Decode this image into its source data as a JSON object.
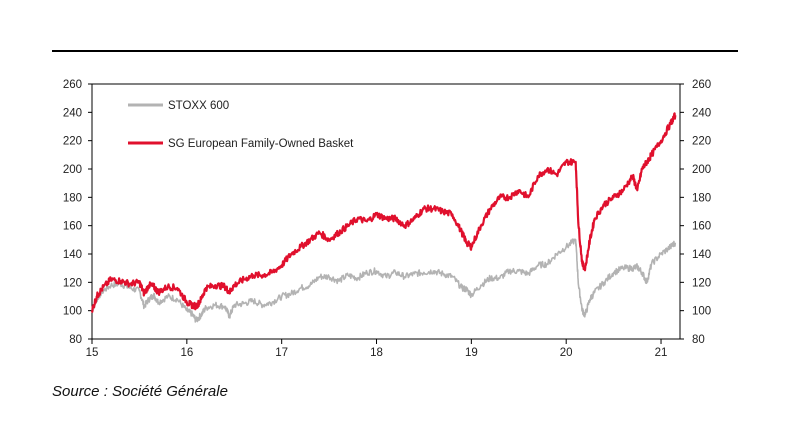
{
  "source": "Source : Société Générale",
  "chart_data": {
    "type": "line",
    "title": "",
    "xlabel": "",
    "ylabel": "",
    "x_ticks": [
      "15",
      "16",
      "17",
      "18",
      "19",
      "20",
      "21"
    ],
    "xlim": [
      15,
      21.2
    ],
    "ylim": [
      80,
      260
    ],
    "y_ticks": [
      80,
      100,
      120,
      140,
      160,
      180,
      200,
      220,
      240,
      260
    ],
    "secondary_y_axis": true,
    "grid": false,
    "legend_position": "top-left",
    "series": [
      {
        "name": "STOXX 600",
        "color": "#b3b3b3",
        "x": [
          15.0,
          15.05,
          15.1,
          15.2,
          15.3,
          15.4,
          15.5,
          15.55,
          15.6,
          15.65,
          15.7,
          15.8,
          15.9,
          16.0,
          16.05,
          16.1,
          16.15,
          16.2,
          16.3,
          16.4,
          16.45,
          16.5,
          16.6,
          16.7,
          16.8,
          16.9,
          17.0,
          17.1,
          17.2,
          17.3,
          17.4,
          17.5,
          17.6,
          17.7,
          17.8,
          17.9,
          18.0,
          18.1,
          18.2,
          18.3,
          18.4,
          18.5,
          18.6,
          18.7,
          18.8,
          18.9,
          18.95,
          19.0,
          19.1,
          19.2,
          19.3,
          19.4,
          19.5,
          19.6,
          19.7,
          19.8,
          19.9,
          20.0,
          20.1,
          20.13,
          20.17,
          20.2,
          20.25,
          20.3,
          20.4,
          20.5,
          20.6,
          20.7,
          20.75,
          20.8,
          20.85,
          20.9,
          21.0,
          21.1,
          21.15
        ],
        "values": [
          100,
          108,
          113,
          118,
          119,
          116,
          114,
          103,
          108,
          111,
          106,
          110,
          108,
          100,
          98,
          93,
          97,
          102,
          104,
          103,
          96,
          104,
          105,
          107,
          104,
          106,
          110,
          112,
          116,
          118,
          124,
          124,
          121,
          125,
          123,
          127,
          128,
          124,
          127,
          124,
          126,
          127,
          128,
          126,
          124,
          116,
          115,
          111,
          118,
          123,
          123,
          128,
          128,
          126,
          132,
          133,
          140,
          145,
          150,
          118,
          100,
          97,
          108,
          113,
          120,
          127,
          130,
          130,
          131,
          127,
          120,
          133,
          140,
          145,
          148
        ]
      },
      {
        "name": "SG European Family-Owned Basket",
        "color": "#e0102d",
        "x": [
          15.0,
          15.05,
          15.1,
          15.2,
          15.3,
          15.4,
          15.5,
          15.55,
          15.6,
          15.65,
          15.7,
          15.8,
          15.9,
          16.0,
          16.05,
          16.1,
          16.15,
          16.2,
          16.3,
          16.4,
          16.45,
          16.5,
          16.6,
          16.7,
          16.8,
          16.9,
          17.0,
          17.1,
          17.2,
          17.3,
          17.4,
          17.5,
          17.6,
          17.7,
          17.8,
          17.9,
          18.0,
          18.1,
          18.2,
          18.3,
          18.4,
          18.5,
          18.6,
          18.7,
          18.8,
          18.9,
          18.95,
          19.0,
          19.1,
          19.2,
          19.3,
          19.4,
          19.5,
          19.6,
          19.7,
          19.8,
          19.9,
          20.0,
          20.1,
          20.13,
          20.17,
          20.2,
          20.25,
          20.3,
          20.4,
          20.5,
          20.6,
          20.7,
          20.75,
          20.8,
          20.85,
          20.9,
          21.0,
          21.1,
          21.15
        ],
        "values": [
          100,
          110,
          115,
          122,
          121,
          119,
          120,
          112,
          118,
          117,
          113,
          117,
          116,
          106,
          104,
          103,
          108,
          116,
          118,
          117,
          113,
          118,
          122,
          125,
          125,
          127,
          132,
          140,
          145,
          150,
          155,
          150,
          155,
          160,
          165,
          163,
          168,
          165,
          165,
          160,
          165,
          172,
          172,
          170,
          168,
          155,
          148,
          145,
          160,
          172,
          180,
          180,
          185,
          180,
          195,
          200,
          196,
          205,
          205,
          160,
          133,
          130,
          150,
          165,
          175,
          180,
          185,
          195,
          185,
          200,
          205,
          210,
          220,
          232,
          238
        ]
      }
    ]
  }
}
